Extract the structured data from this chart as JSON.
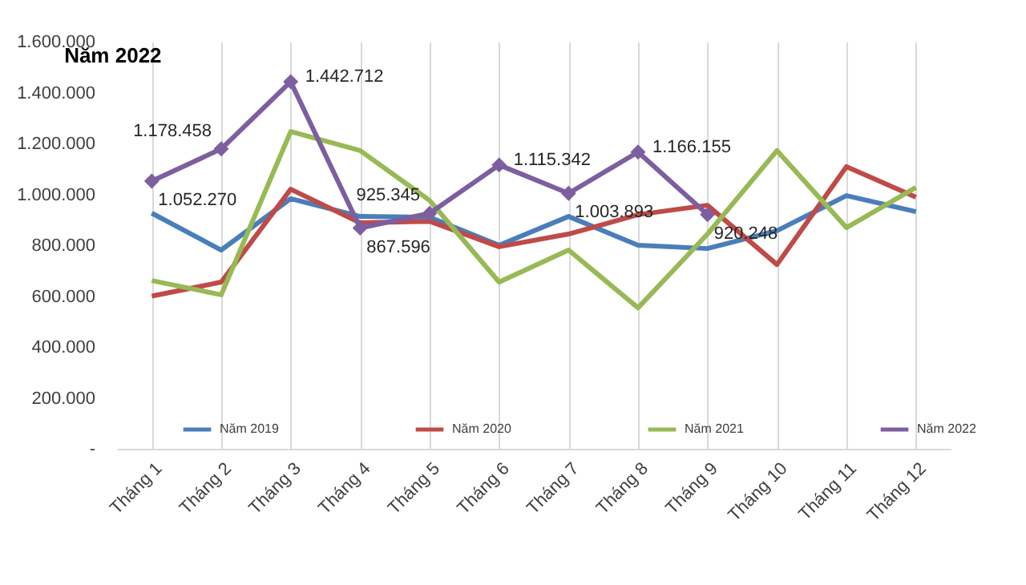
{
  "chart_data": {
    "type": "line",
    "title": "Năm 2022",
    "categories": [
      "Tháng 1",
      "Tháng 2",
      "Tháng 3",
      "Tháng 4",
      "Tháng 5",
      "Tháng 6",
      "Tháng 7",
      "Tháng 8",
      "Tháng 9",
      "Tháng 10",
      "Tháng 11",
      "Tháng 12"
    ],
    "series": [
      {
        "name": "Năm 2019",
        "color": "#4a7ebb",
        "marker": "none",
        "values": [
          926000,
          781000,
          983000,
          913000,
          910000,
          800000,
          913000,
          800000,
          787000,
          857000,
          995000,
          932000
        ]
      },
      {
        "name": "Năm 2020",
        "color": "#be4b48",
        "marker": "none",
        "values": [
          600000,
          655000,
          1020000,
          888000,
          894000,
          794000,
          844000,
          920000,
          957000,
          724000,
          1109000,
          989000
        ]
      },
      {
        "name": "Năm 2021",
        "color": "#98b954",
        "marker": "none",
        "values": [
          661000,
          605000,
          1247000,
          1172000,
          976000,
          655000,
          781000,
          554000,
          844000,
          1172000,
          869000,
          1027000
        ]
      },
      {
        "name": "Năm 2022",
        "color": "#7d5fa0",
        "marker": "diamond",
        "values": [
          1052270,
          1178458,
          1442712,
          867596,
          925345,
          1115342,
          1003893,
          1166155,
          920248,
          null,
          null,
          null
        ],
        "value_labels": [
          "1.052.270",
          "1.178.458",
          "1.442.712",
          "867.596",
          "925.345",
          "1.115.342",
          "1.003.893",
          "1.166.155",
          "920.248",
          null,
          null,
          null
        ]
      }
    ],
    "ylim": [
      0,
      1600000
    ],
    "yticks": [
      {
        "value": 0,
        "label": "-"
      },
      {
        "value": 200000,
        "label": "200.000"
      },
      {
        "value": 400000,
        "label": "400.000"
      },
      {
        "value": 600000,
        "label": "600.000"
      },
      {
        "value": 800000,
        "label": "800.000"
      },
      {
        "value": 1000000,
        "label": "1.000.000"
      },
      {
        "value": 1200000,
        "label": "1.200.000"
      },
      {
        "value": 1400000,
        "label": "1.400.000"
      },
      {
        "value": 1600000,
        "label": "1.600.000"
      }
    ],
    "grid": "x",
    "legend": "bottom",
    "line_style": "solid"
  }
}
